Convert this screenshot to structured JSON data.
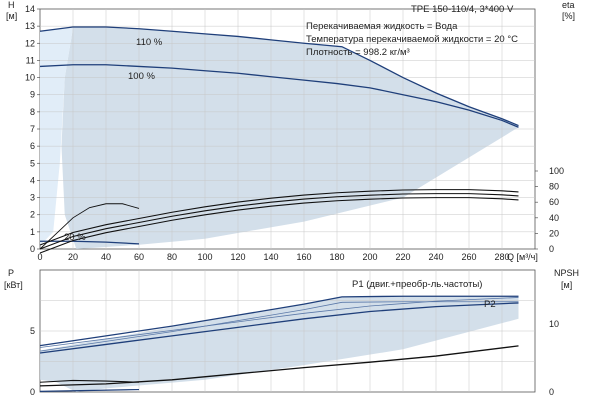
{
  "chart_data": [
    {
      "id": "top",
      "type": "line",
      "title": "TPE 150-110/4, 3*400 V",
      "info": [
        "Перекачиваемая жидкость = Вода",
        "Температура перекачиваемой жидкости = 20 °C",
        "Плотность = 998.2 кг/м³"
      ],
      "x_axis": {
        "label": "Q [м³/ч]",
        "range": [
          0,
          300
        ],
        "ticks": [
          "0",
          "20",
          "40",
          "60",
          "80",
          "100",
          "120",
          "140",
          "160",
          "180",
          "200",
          "220",
          "240",
          "260",
          "280"
        ]
      },
      "y_left": {
        "label_top": "H",
        "label_unit": "[м]",
        "range": [
          0,
          14
        ],
        "ticks": [
          "0",
          "1",
          "2",
          "3",
          "4",
          "5",
          "6",
          "7",
          "8",
          "9",
          "10",
          "11",
          "12",
          "13",
          "14"
        ]
      },
      "y_right": {
        "label_top": "eta",
        "label_unit": "[%]",
        "range": [
          0,
          100
        ],
        "ticks": [
          "0",
          "20",
          "40",
          "60",
          "80",
          "100"
        ]
      },
      "series": [
        {
          "name": "110 %",
          "axis": "left",
          "x": [
            0,
            20,
            40,
            60,
            80,
            100,
            120,
            140,
            160,
            183,
            200,
            220,
            240,
            260,
            280,
            290
          ],
          "y": [
            12.7,
            12.95,
            12.95,
            12.85,
            12.7,
            12.55,
            12.4,
            12.2,
            12.0,
            11.8,
            11.0,
            10.0,
            9.1,
            8.3,
            7.6,
            7.2
          ]
        },
        {
          "name": "100 %",
          "axis": "left",
          "x": [
            0,
            20,
            40,
            60,
            80,
            100,
            120,
            140,
            160,
            180,
            200,
            220,
            240,
            260,
            280,
            290
          ],
          "y": [
            10.65,
            10.75,
            10.75,
            10.65,
            10.55,
            10.4,
            10.25,
            10.05,
            9.85,
            9.65,
            9.4,
            9.0,
            8.6,
            8.1,
            7.5,
            7.1
          ]
        },
        {
          "name": "20 %",
          "axis": "left",
          "x": [
            0,
            20,
            40,
            60
          ],
          "y": [
            0.45,
            0.45,
            0.4,
            0.3
          ]
        }
      ],
      "efficiency": {
        "x": [
          0,
          20,
          40,
          60,
          80,
          100,
          120,
          140,
          160,
          180,
          200,
          220,
          240,
          260,
          280,
          290
        ],
        "y": [
          0,
          16,
          26,
          34,
          42,
          49,
          55,
          60,
          64,
          67,
          69,
          70.5,
          71,
          71,
          69.5,
          68
        ]
      },
      "efficiency_small": {
        "x": [
          0,
          10,
          20,
          30,
          40,
          50,
          60
        ],
        "y": [
          0,
          20,
          40,
          53,
          58,
          58,
          52
        ]
      }
    },
    {
      "id": "bottom",
      "type": "line",
      "x_axis": {
        "range": [
          0,
          300
        ]
      },
      "y_left": {
        "label_top": "P",
        "label_unit": "[кВт]",
        "range": [
          0,
          10
        ],
        "ticks": [
          "0",
          "5"
        ]
      },
      "y_right": {
        "label_top": "NPSH",
        "label_unit": "[м]",
        "range": [
          0,
          18
        ],
        "ticks": [
          "0",
          "10"
        ]
      },
      "series": [
        {
          "name": "P1 (двиг.+преобр-ль.частоты)",
          "axis": "left",
          "x": [
            0,
            40,
            80,
            120,
            160,
            183,
            220,
            260,
            290
          ],
          "y": [
            3.8,
            4.6,
            5.4,
            6.3,
            7.2,
            7.8,
            7.85,
            7.85,
            7.85
          ]
        },
        {
          "name": "P2",
          "axis": "left",
          "x": [
            0,
            40,
            80,
            120,
            160,
            200,
            240,
            290
          ],
          "y": [
            3.2,
            3.9,
            4.6,
            5.3,
            6.0,
            6.6,
            7.0,
            7.3
          ]
        },
        {
          "name": "NPSH",
          "axis": "right",
          "x": [
            0,
            40,
            80,
            120,
            160,
            200,
            240,
            290
          ],
          "y": [
            0.9,
            1.2,
            1.8,
            2.7,
            3.6,
            4.4,
            5.3,
            6.8
          ]
        }
      ]
    }
  ]
}
